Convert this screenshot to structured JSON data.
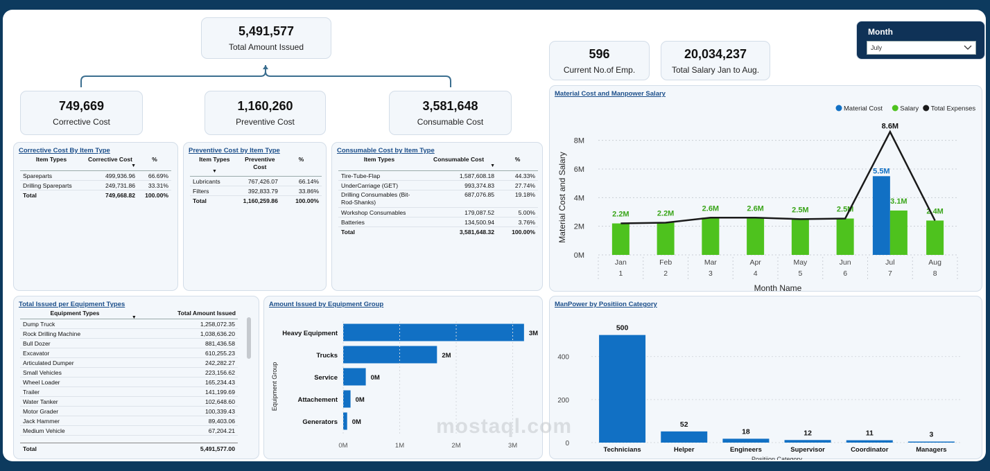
{
  "kpis": {
    "total_amount": {
      "value": "5,491,577",
      "label": "Total Amount Issued"
    },
    "corrective": {
      "value": "749,669",
      "label": "Corrective Cost"
    },
    "preventive": {
      "value": "1,160,260",
      "label": "Preventive Cost"
    },
    "consumable": {
      "value": "3,581,648",
      "label": "Consumable Cost"
    },
    "employees": {
      "value": "596",
      "label": "Current No.of Emp."
    },
    "salary": {
      "value": "20,034,237",
      "label": "Total Salary Jan to Aug."
    }
  },
  "slicer": {
    "title": "Month",
    "selected": "July"
  },
  "corrective_table": {
    "title": "Corrective Cost By Item Type",
    "headers": [
      "Item Types",
      "Corrective Cost",
      "%"
    ],
    "rows": [
      [
        "Spareparts",
        "499,936.96",
        "66.69%"
      ],
      [
        "Drilling Spareparts",
        "249,731.86",
        "33.31%"
      ]
    ],
    "total": [
      "Total",
      "749,668.82",
      "100.00%"
    ]
  },
  "preventive_table": {
    "title": "Preventive Cost by Item Type",
    "headers": [
      "Item Types",
      "Preventive Cost",
      "%"
    ],
    "rows": [
      [
        "Lubricants",
        "767,426.07",
        "66.14%"
      ],
      [
        "Filters",
        "392,833.79",
        "33.86%"
      ]
    ],
    "total": [
      "Total",
      "1,160,259.86",
      "100.00%"
    ]
  },
  "consumable_table": {
    "title": "Consumable Cost by Item Type",
    "headers": [
      "Item Types",
      "Consumable Cost",
      "%"
    ],
    "rows": [
      [
        "Tire-Tube-Flap",
        "1,587,608.18",
        "44.33%"
      ],
      [
        "UnderCarriage (GET)",
        "993,374.83",
        "27.74%"
      ],
      [
        "Drilling Consumables (Bit-Rod-Shanks)",
        "687,076.85",
        "19.18%"
      ],
      [
        "Workshop Consumables",
        "179,087.52",
        "5.00%"
      ],
      [
        "Batteries",
        "134,500.94",
        "3.76%"
      ]
    ],
    "total": [
      "Total",
      "3,581,648.32",
      "100.00%"
    ]
  },
  "equipment_table": {
    "title": "Total Issued per Equipment Types",
    "headers": [
      "Equipment Types",
      "Total Amount Issued"
    ],
    "rows": [
      [
        "Dump Truck",
        "1,258,072.35"
      ],
      [
        "Rock Drilling Machine",
        "1,038,636.20"
      ],
      [
        "Bull Dozer",
        "881,436.58"
      ],
      [
        "Excavator",
        "610,255.23"
      ],
      [
        "Articulated Dumper",
        "242,282.27"
      ],
      [
        "Small Vehicles",
        "223,156.62"
      ],
      [
        "Wheel Loader",
        "165,234.43"
      ],
      [
        "Trailer",
        "141,199.69"
      ],
      [
        "Water Tanker",
        "102,648.60"
      ],
      [
        "Motor Grader",
        "100,339.43"
      ],
      [
        "Jack Hammer",
        "89,403.06"
      ],
      [
        "Medium Vehicle",
        "67,204.21"
      ]
    ],
    "total": [
      "Total",
      "5,491,577.00"
    ]
  },
  "watermark": "mostaql.com",
  "chart_data": [
    {
      "type": "bar",
      "title": "Material Cost and Manpower Salary",
      "categories": [
        "Jan",
        "Feb",
        "Mar",
        "Apr",
        "May",
        "Jun",
        "Jul",
        "Aug"
      ],
      "category_numbers": [
        "1",
        "2",
        "3",
        "4",
        "5",
        "6",
        "7",
        "8"
      ],
      "xlabel": "Month Name",
      "ylabel": "Material Cost and Salary",
      "ylim": [
        0,
        9000000
      ],
      "yticks": [
        {
          "v": 0,
          "label": "0M"
        },
        {
          "v": 2000000,
          "label": "2M"
        },
        {
          "v": 4000000,
          "label": "4M"
        },
        {
          "v": 6000000,
          "label": "6M"
        },
        {
          "v": 8000000,
          "label": "8M"
        }
      ],
      "legend": [
        "Material Cost",
        "Salary",
        "Total Expenses"
      ],
      "colors": {
        "material": "#1170c4",
        "salary": "#4ec21e",
        "total": "#1a1a1a"
      },
      "series": [
        {
          "name": "Material Cost",
          "values": [
            0,
            0,
            0,
            0,
            0,
            0,
            5500000,
            0
          ],
          "labels": [
            "",
            "",
            "",
            "",
            "",
            "",
            "5.5M",
            ""
          ]
        },
        {
          "name": "Salary",
          "values": [
            2200000,
            2250000,
            2600000,
            2600000,
            2500000,
            2540000,
            3100000,
            2400000
          ],
          "labels": [
            "2.2M",
            "2.2M",
            "2.6M",
            "2.6M",
            "2.5M",
            "2.5M",
            "3.1M",
            "2.4M"
          ]
        },
        {
          "name": "Total Expenses",
          "values": [
            2200000,
            2250000,
            2600000,
            2600000,
            2500000,
            2540000,
            8600000,
            2400000
          ],
          "labels": [
            "",
            "",
            "",
            "",
            "",
            "",
            "8.6M",
            ""
          ]
        }
      ]
    },
    {
      "type": "bar",
      "orientation": "horizontal",
      "title": "Amount Issued by Equipment Group",
      "categories": [
        "Heavy Equipment",
        "Trucks",
        "Service",
        "Attachement",
        "Generators"
      ],
      "values": [
        3200000,
        1660000,
        400000,
        130000,
        70000
      ],
      "labels": [
        "3M",
        "2M",
        "0M",
        "0M",
        "0M"
      ],
      "ylabel": "Equipment Group",
      "xlim": [
        0,
        3300000
      ],
      "xticks": [
        {
          "v": 0,
          "label": "0M"
        },
        {
          "v": 1000000,
          "label": "1M"
        },
        {
          "v": 2000000,
          "label": "2M"
        },
        {
          "v": 3000000,
          "label": "3M"
        }
      ],
      "color": "#1170c4"
    },
    {
      "type": "bar",
      "title": "ManPower by Positiion Category",
      "categories": [
        "Technicians",
        "Helper",
        "Engineers",
        "Supervisor",
        "Coordinator",
        "Managers"
      ],
      "values": [
        500,
        52,
        18,
        12,
        11,
        3
      ],
      "labels": [
        "500",
        "52",
        "18",
        "12",
        "11",
        "3"
      ],
      "xlabel": "Positiion Category",
      "ylim": [
        0,
        560
      ],
      "yticks": [
        {
          "v": 0,
          "label": "0"
        },
        {
          "v": 200,
          "label": "200"
        },
        {
          "v": 400,
          "label": "400"
        }
      ],
      "color": "#1170c4"
    }
  ]
}
